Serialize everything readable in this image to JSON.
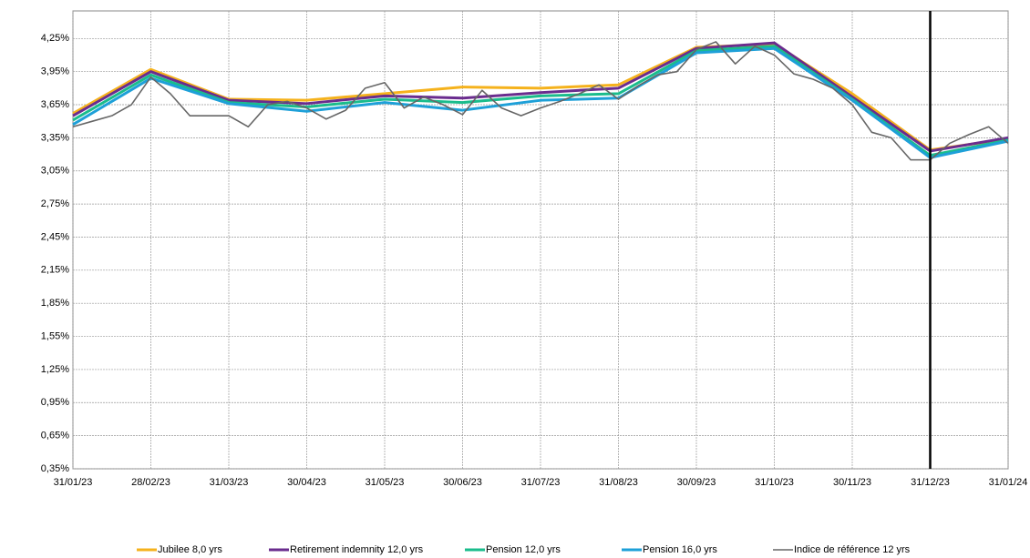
{
  "chart_data": {
    "type": "line",
    "x": [
      0,
      1,
      2,
      3,
      4,
      5,
      6,
      7,
      8,
      9,
      10,
      11,
      12
    ],
    "xlim": [
      0,
      12
    ],
    "xticks": [
      {
        "value": 0,
        "label": "31/01/23"
      },
      {
        "value": 1,
        "label": "28/02/23"
      },
      {
        "value": 2,
        "label": "31/03/23"
      },
      {
        "value": 3,
        "label": "30/04/23"
      },
      {
        "value": 4,
        "label": "31/05/23"
      },
      {
        "value": 5,
        "label": "30/06/23"
      },
      {
        "value": 6,
        "label": "31/07/23"
      },
      {
        "value": 7,
        "label": "31/08/23"
      },
      {
        "value": 8,
        "label": "30/09/23"
      },
      {
        "value": 9,
        "label": "31/10/23"
      },
      {
        "value": 10,
        "label": "30/11/23"
      },
      {
        "value": 11,
        "label": "31/12/23"
      },
      {
        "value": 12,
        "label": "31/01/24"
      }
    ],
    "ylim": [
      0.35,
      4.5
    ],
    "yticks": [
      {
        "value": 0.35,
        "label": "0,35%"
      },
      {
        "value": 0.65,
        "label": "0,65%"
      },
      {
        "value": 0.95,
        "label": "0,95%"
      },
      {
        "value": 1.25,
        "label": "1,25%"
      },
      {
        "value": 1.55,
        "label": "1,55%"
      },
      {
        "value": 1.85,
        "label": "1,85%"
      },
      {
        "value": 2.15,
        "label": "2,15%"
      },
      {
        "value": 2.45,
        "label": "2,45%"
      },
      {
        "value": 2.75,
        "label": "2,75%"
      },
      {
        "value": 3.05,
        "label": "3,05%"
      },
      {
        "value": 3.35,
        "label": "3,35%"
      },
      {
        "value": 3.65,
        "label": "3,65%"
      },
      {
        "value": 3.95,
        "label": "3,95%"
      },
      {
        "value": 4.25,
        "label": "4,25%"
      }
    ],
    "grid": true,
    "vline_x": 11,
    "legend": "bottom",
    "series": [
      {
        "name": "Jubilee 8,0 yrs",
        "color": "#f5b21c",
        "values": [
          3.57,
          3.97,
          3.7,
          3.69,
          3.75,
          3.81,
          3.8,
          3.83,
          4.17,
          4.2,
          3.75,
          3.24,
          3.34
        ]
      },
      {
        "name": "Retirement indemnity 12,0 yrs",
        "color": "#6a2c8e",
        "values": [
          3.55,
          3.95,
          3.69,
          3.66,
          3.73,
          3.71,
          3.76,
          3.8,
          4.16,
          4.21,
          3.72,
          3.23,
          3.35
        ]
      },
      {
        "name": "Pension 12,0 yrs",
        "color": "#1abc8c",
        "values": [
          3.51,
          3.92,
          3.67,
          3.63,
          3.7,
          3.67,
          3.73,
          3.75,
          4.14,
          4.18,
          3.7,
          3.19,
          3.33
        ]
      },
      {
        "name": "Pension 16,0 yrs",
        "color": "#1ea0d8",
        "values": [
          3.47,
          3.89,
          3.66,
          3.59,
          3.67,
          3.6,
          3.69,
          3.71,
          4.12,
          4.16,
          3.69,
          3.17,
          3.32
        ]
      },
      {
        "name": "Indice de référence 12 yrs",
        "color": "#666666",
        "x": [
          0,
          0.25,
          0.5,
          0.75,
          1,
          1.25,
          1.5,
          1.75,
          2,
          2.25,
          2.5,
          2.75,
          3,
          3.25,
          3.5,
          3.75,
          4,
          4.25,
          4.5,
          4.75,
          5,
          5.25,
          5.5,
          5.75,
          6,
          6.25,
          6.5,
          6.75,
          7,
          7.25,
          7.5,
          7.75,
          8,
          8.25,
          8.5,
          8.75,
          9,
          9.25,
          9.5,
          9.75,
          10,
          10.25,
          10.5,
          10.75,
          11,
          11.25,
          11.5,
          11.75,
          12
        ],
        "values": [
          3.45,
          3.5,
          3.55,
          3.65,
          3.9,
          3.75,
          3.55,
          3.55,
          3.55,
          3.45,
          3.65,
          3.68,
          3.62,
          3.52,
          3.6,
          3.8,
          3.85,
          3.62,
          3.72,
          3.65,
          3.56,
          3.78,
          3.62,
          3.55,
          3.62,
          3.68,
          3.75,
          3.83,
          3.7,
          3.82,
          3.92,
          3.95,
          4.15,
          4.22,
          4.02,
          4.18,
          4.1,
          3.93,
          3.88,
          3.8,
          3.65,
          3.4,
          3.35,
          3.15,
          3.15,
          3.3,
          3.38,
          3.45,
          3.3
        ]
      }
    ]
  }
}
